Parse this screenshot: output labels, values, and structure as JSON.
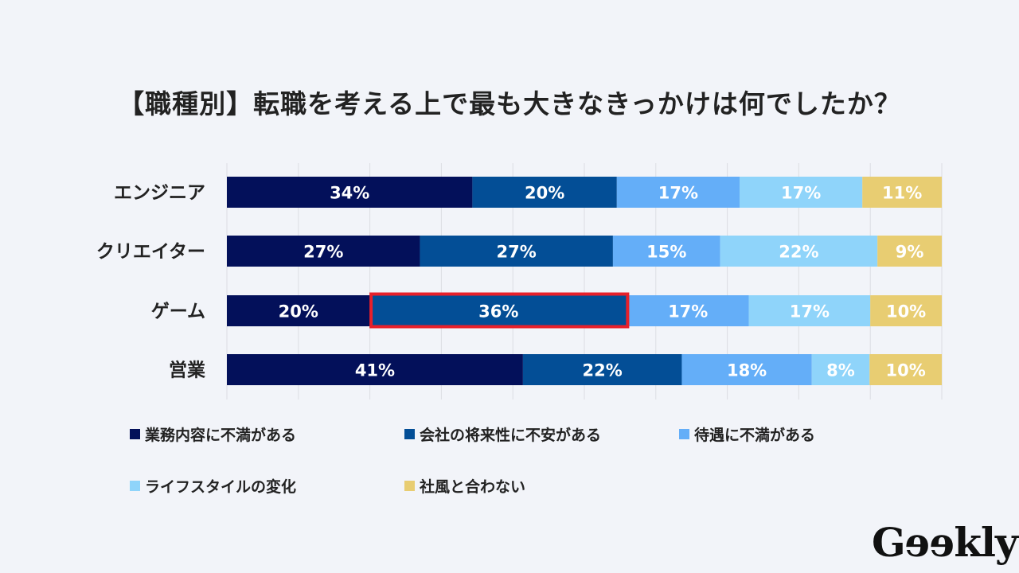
{
  "chart_data": {
    "type": "bar",
    "orientation": "horizontal-stacked-100",
    "title": "【職種別】転職を考える上で最も大きなきっかけは何でしたか？",
    "categories": [
      "エンジニア",
      "クリエイター",
      "ゲーム",
      "営業"
    ],
    "series": [
      {
        "name": "業務内容に不満がある",
        "color": "#03105a",
        "values": [
          34,
          27,
          20,
          41
        ]
      },
      {
        "name": "会社の将来性に不安がある",
        "color": "#034e96",
        "values": [
          20,
          27,
          36,
          22
        ]
      },
      {
        "name": "待遇に不満がある",
        "color": "#64aef8",
        "values": [
          17,
          15,
          17,
          18
        ]
      },
      {
        "name": "ライフスタイルの変化",
        "color": "#8fd4fa",
        "values": [
          17,
          22,
          17,
          8
        ]
      },
      {
        "name": "社風と合わない",
        "color": "#e8cd72",
        "values": [
          11,
          9,
          10,
          10
        ]
      }
    ],
    "value_suffix": "%",
    "xlim": [
      0,
      100
    ],
    "grid": true,
    "legend_position": "bottom",
    "highlight": {
      "category": "ゲーム",
      "series": "会社の将来性に不安がある",
      "color": "#e8202a"
    }
  },
  "brand": {
    "logo": "Geekly"
  }
}
